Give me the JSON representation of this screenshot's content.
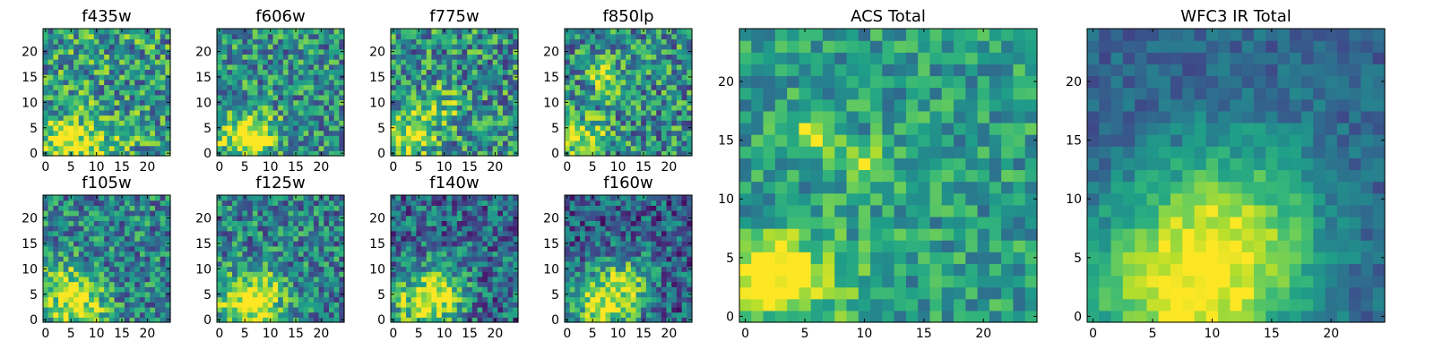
{
  "colormap": {
    "name": "viridis",
    "stops": [
      "#440154",
      "#482878",
      "#3e4989",
      "#31688e",
      "#26828e",
      "#1f9e89",
      "#35b779",
      "#6ece58",
      "#b5de2b",
      "#fde725"
    ]
  },
  "chart_data": [
    {
      "type": "heatmap",
      "title": "f435w",
      "grid_size": 25,
      "xlim": [
        0,
        24
      ],
      "ylim": [
        0,
        24
      ],
      "xticks": [
        0,
        5,
        10,
        15,
        20
      ],
      "yticks": [
        0,
        5,
        10,
        15,
        20
      ],
      "seed": 101,
      "pattern": {
        "blobs": [
          [
            3,
            3,
            2.5,
            0.5
          ],
          [
            10,
            1,
            4,
            0.3
          ]
        ],
        "ridge": [
          0,
          0,
          0,
          0
        ],
        "base": 0.55,
        "noise": 0.35
      }
    },
    {
      "type": "heatmap",
      "title": "f606w",
      "grid_size": 25,
      "xlim": [
        0,
        24
      ],
      "ylim": [
        0,
        24
      ],
      "xticks": [
        0,
        5,
        10,
        15,
        20
      ],
      "yticks": [
        0,
        5,
        10,
        15,
        20
      ],
      "seed": 202,
      "pattern": {
        "blobs": [
          [
            4,
            3,
            3,
            0.45
          ],
          [
            8,
            4,
            3,
            0.35
          ]
        ],
        "ridge": [
          0,
          0,
          0,
          0
        ],
        "base": 0.5,
        "noise": 0.32
      }
    },
    {
      "type": "heatmap",
      "title": "f775w",
      "grid_size": 25,
      "xlim": [
        0,
        24
      ],
      "ylim": [
        0,
        24
      ],
      "xticks": [
        0,
        5,
        10,
        15,
        20
      ],
      "yticks": [
        0,
        5,
        10,
        15,
        20
      ],
      "seed": 303,
      "pattern": {
        "blobs": [
          [
            3,
            3,
            3,
            0.45
          ],
          [
            9,
            9,
            3,
            0.25
          ]
        ],
        "ridge": [
          0,
          0,
          0,
          0
        ],
        "base": 0.5,
        "noise": 0.34
      }
    },
    {
      "type": "heatmap",
      "title": "f850lp",
      "grid_size": 25,
      "xlim": [
        0,
        24
      ],
      "ylim": [
        0,
        24
      ],
      "xticks": [
        0,
        5,
        10,
        15,
        20
      ],
      "yticks": [
        0,
        5,
        10,
        15,
        20
      ],
      "seed": 404,
      "pattern": {
        "blobs": [
          [
            3,
            3,
            3,
            0.4
          ],
          [
            6,
            16,
            1.5,
            0.45
          ],
          [
            9,
            13,
            2,
            0.3
          ]
        ],
        "ridge": [
          0,
          0,
          0,
          0
        ],
        "base": 0.5,
        "noise": 0.34
      }
    },
    {
      "type": "heatmap",
      "title": "f105w",
      "grid_size": 25,
      "xlim": [
        0,
        24
      ],
      "ylim": [
        0,
        24
      ],
      "xticks": [
        0,
        5,
        10,
        15,
        20
      ],
      "yticks": [
        0,
        5,
        10,
        15,
        20
      ],
      "seed": 505,
      "pattern": {
        "blobs": [
          [
            6,
            3,
            4,
            0.5
          ],
          [
            2,
            8,
            3,
            0.25
          ]
        ],
        "ridge": [
          0,
          0,
          0,
          0
        ],
        "base": 0.45,
        "noise": 0.3
      }
    },
    {
      "type": "heatmap",
      "title": "f125w",
      "grid_size": 25,
      "xlim": [
        0,
        24
      ],
      "ylim": [
        0,
        24
      ],
      "xticks": [
        0,
        5,
        10,
        15,
        20
      ],
      "yticks": [
        0,
        5,
        10,
        15,
        20
      ],
      "seed": 606,
      "pattern": {
        "blobs": [
          [
            5,
            3,
            4,
            0.5
          ],
          [
            9,
            5,
            3,
            0.3
          ]
        ],
        "ridge": [
          0,
          0,
          0,
          0
        ],
        "base": 0.45,
        "noise": 0.3
      }
    },
    {
      "type": "heatmap",
      "title": "f140w",
      "grid_size": 25,
      "xlim": [
        0,
        24
      ],
      "ylim": [
        0,
        24
      ],
      "xticks": [
        0,
        5,
        10,
        15,
        20
      ],
      "yticks": [
        0,
        5,
        10,
        15,
        20
      ],
      "seed": 707,
      "pattern": {
        "blobs": [
          [
            6,
            3,
            4.5,
            0.55
          ],
          [
            10,
            6,
            3,
            0.3
          ]
        ],
        "ridge": [
          0,
          0,
          0,
          0
        ],
        "base": 0.35,
        "noise": 0.3
      }
    },
    {
      "type": "heatmap",
      "title": "f160w",
      "grid_size": 25,
      "xlim": [
        0,
        24
      ],
      "ylim": [
        0,
        24
      ],
      "xticks": [
        0,
        5,
        10,
        15,
        20
      ],
      "yticks": [
        0,
        5,
        10,
        15,
        20
      ],
      "seed": 808,
      "pattern": {
        "blobs": [
          [
            7,
            3,
            4.5,
            0.6
          ],
          [
            12,
            8,
            4,
            0.3
          ]
        ],
        "ridge": [
          0,
          0,
          0,
          0
        ],
        "base": 0.3,
        "noise": 0.28
      }
    },
    {
      "type": "heatmap",
      "title": "ACS Total",
      "grid_size": 25,
      "xlim": [
        0,
        24
      ],
      "ylim": [
        0,
        24
      ],
      "xticks": [
        0,
        5,
        10,
        15,
        20
      ],
      "yticks": [
        0,
        5,
        10,
        15,
        20
      ],
      "seed": 909,
      "pattern": {
        "blobs": [
          [
            2,
            4,
            2,
            0.45
          ],
          [
            6,
            16,
            1.2,
            0.5
          ],
          [
            10,
            13,
            1.3,
            0.35
          ],
          [
            5,
            3,
            3,
            0.3
          ]
        ],
        "ridge": [
          0,
          0,
          0,
          0
        ],
        "base": 0.55,
        "noise": 0.22
      }
    },
    {
      "type": "heatmap",
      "title": "WFC3 IR Total",
      "grid_size": 25,
      "xlim": [
        0,
        24
      ],
      "ylim": [
        0,
        24
      ],
      "xticks": [
        0,
        5,
        10,
        15,
        20
      ],
      "yticks": [
        0,
        5,
        10,
        15,
        20
      ],
      "seed": 1001,
      "pattern": {
        "blobs": [
          [
            8,
            2,
            6,
            0.65
          ],
          [
            13,
            9,
            5,
            0.3
          ]
        ],
        "ridge": [
          0,
          0,
          0,
          0
        ],
        "base": 0.32,
        "noise": 0.12
      }
    }
  ]
}
